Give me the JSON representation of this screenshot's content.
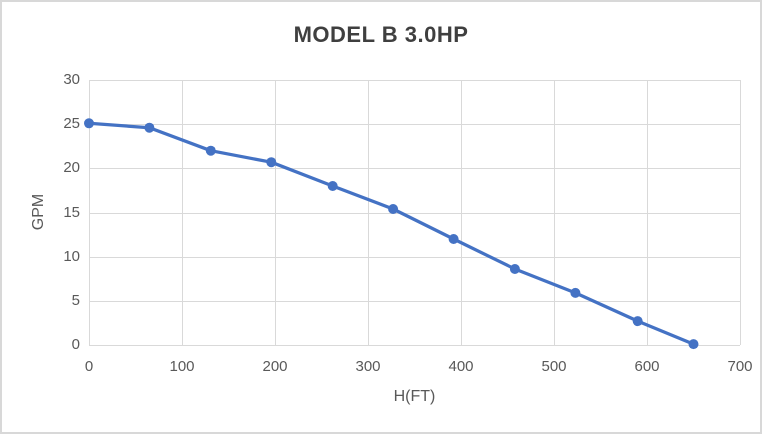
{
  "chart": {
    "frame_border_color": "#d8d8d8",
    "background_color": "#ffffff"
  },
  "chart_data": {
    "type": "line",
    "title": "MODEL B 3.0HP",
    "xlabel": "H(FT)",
    "ylabel": "GPM",
    "xlim": [
      0,
      700
    ],
    "ylim": [
      0,
      30
    ],
    "x_ticks": [
      0,
      100,
      200,
      300,
      400,
      500,
      600,
      700
    ],
    "y_ticks": [
      0,
      5,
      10,
      15,
      20,
      25,
      30
    ],
    "grid": true,
    "legend": "none",
    "series": [
      {
        "name": "MODEL B 3.0HP",
        "x": [
          0,
          65,
          131,
          196,
          262,
          327,
          392,
          458,
          523,
          590,
          650
        ],
        "y": [
          25.1,
          24.6,
          22,
          20.7,
          18,
          15.4,
          12,
          8.6,
          5.9,
          2.7,
          0.1
        ],
        "color": "#4472c4",
        "marker": "circle",
        "marker_radius": 5,
        "line_width": 3.25
      }
    ],
    "gridline_color": "#d9d9d9",
    "axis_text_color": "#595959",
    "title_color": "#3f3f3f"
  }
}
